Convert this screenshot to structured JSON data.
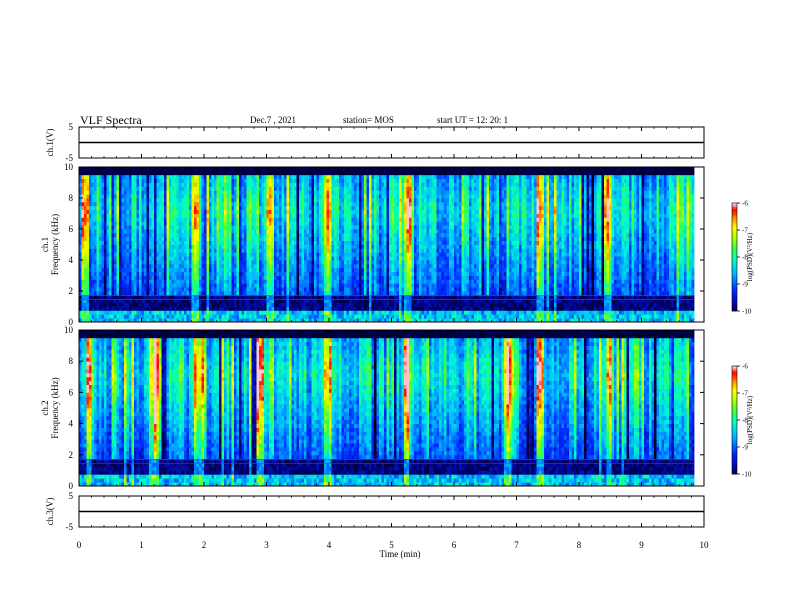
{
  "header": {
    "title": "VLF Spectra",
    "date": "Dec.7 , 2021",
    "station": "station= MOS",
    "start": "start  UT =   12: 20: 1"
  },
  "chart_data": [
    {
      "type": "line",
      "panel": "ch1-waveform",
      "ylabel": "ch.1(V)",
      "ylim": [
        -5,
        5
      ],
      "yticks": [
        "5",
        "-5"
      ],
      "xlim": [
        0,
        10
      ],
      "series": [
        {
          "x": [
            0,
            10
          ],
          "values": [
            0,
            0
          ]
        }
      ]
    },
    {
      "type": "heatmap",
      "panel": "ch1-spectrogram",
      "ylabel": "ch.1\nFrequency  (kHz)",
      "ylim": [
        0,
        10
      ],
      "yticks": [
        "0",
        "2",
        "4",
        "6",
        "8",
        "10"
      ],
      "xlim": [
        0,
        10
      ],
      "colorbar": {
        "label": "log(PSD)(V²/Hz)",
        "range": [
          -10,
          -6
        ],
        "ticks": [
          "-6",
          "-7",
          "-8",
          "-9",
          "-10"
        ]
      },
      "features": {
        "broadband_band_khz": [
          2.0,
          9.5
        ],
        "quiet_band_khz": [
          0.8,
          1.8
        ],
        "strong_impulses_min": [
          0.08,
          1.85,
          3.05,
          3.95,
          5.25,
          7.35,
          8.45
        ]
      }
    },
    {
      "type": "heatmap",
      "panel": "ch2-spectrogram",
      "ylabel": "ch.2\nFrequency  (kHz)",
      "ylim": [
        0,
        10
      ],
      "yticks": [
        "0",
        "2",
        "4",
        "6",
        "8",
        "10"
      ],
      "xlim": [
        0,
        10
      ],
      "colorbar": {
        "label": "log(PSD)(V²/Hz)",
        "range": [
          -10,
          -6
        ],
        "ticks": [
          "-6",
          "-7",
          "-8",
          "-9",
          "-10"
        ]
      },
      "features": {
        "broadband_band_khz": [
          2.0,
          9.0
        ],
        "quiet_band_khz": [
          0.8,
          1.8
        ],
        "strong_impulses_min": [
          0.15,
          1.2,
          1.9,
          2.9,
          3.95,
          5.25,
          6.85,
          7.35,
          8.45
        ]
      }
    },
    {
      "type": "line",
      "panel": "ch3-waveform",
      "ylabel": "ch.3(V)",
      "ylim": [
        -5,
        5
      ],
      "yticks": [
        "5",
        "-5"
      ],
      "xlim": [
        0,
        10
      ],
      "series": [
        {
          "x": [
            0,
            10
          ],
          "values": [
            0,
            0
          ]
        }
      ]
    }
  ],
  "xaxis": {
    "label": "Time  (min)",
    "ticks": [
      "0",
      "1",
      "2",
      "3",
      "4",
      "5",
      "6",
      "7",
      "8",
      "9",
      "10"
    ],
    "range": [
      0,
      10
    ]
  },
  "colorscale": [
    "#000000",
    "#0000a0",
    "#0040ff",
    "#00c0ff",
    "#00ffc0",
    "#40ff40",
    "#c0ff00",
    "#ffff00",
    "#ff8000",
    "#ff0000",
    "#ffc0c0",
    "#ffffff"
  ],
  "data_end_min": 9.83
}
